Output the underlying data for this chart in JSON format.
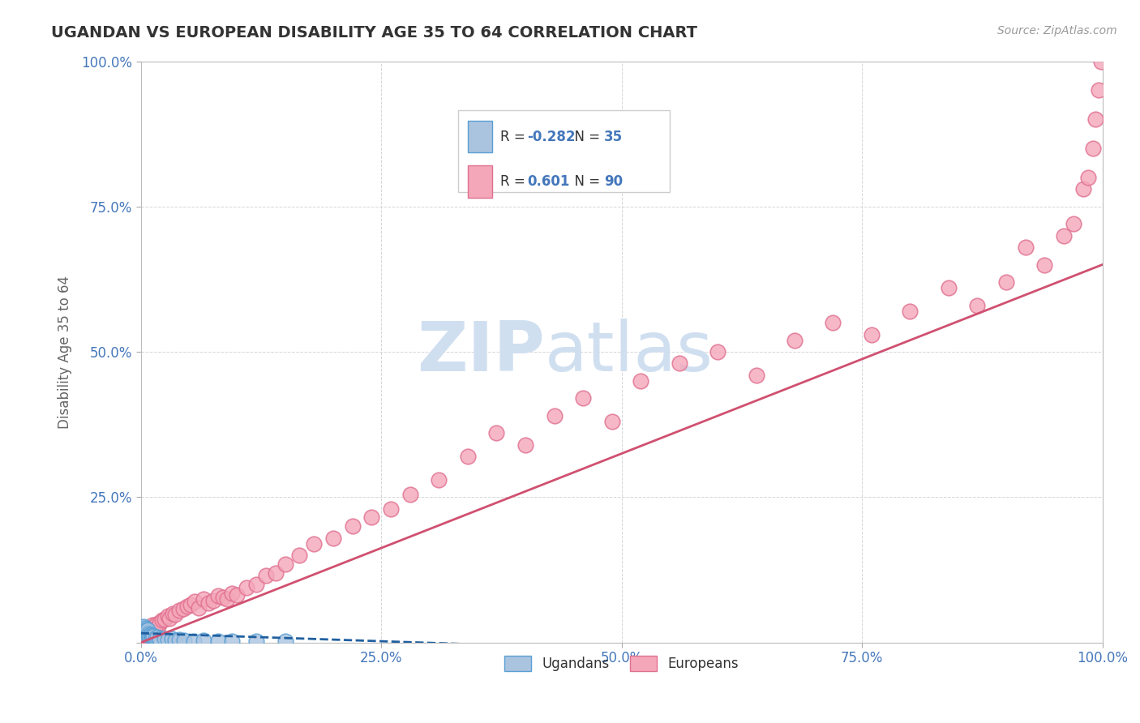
{
  "title": "UGANDAN VS EUROPEAN DISABILITY AGE 35 TO 64 CORRELATION CHART",
  "source": "Source: ZipAtlas.com",
  "ylabel": "Disability Age 35 to 64",
  "xlim": [
    0,
    1.0
  ],
  "ylim": [
    0,
    1.0
  ],
  "xticks": [
    0.0,
    0.25,
    0.5,
    0.75,
    1.0
  ],
  "xticklabels": [
    "0.0%",
    "25.0%",
    "50.0%",
    "75.0%",
    "100.0%"
  ],
  "yticks": [
    0.0,
    0.25,
    0.5,
    0.75,
    1.0
  ],
  "yticklabels": [
    "",
    "25.0%",
    "50.0%",
    "75.0%",
    "100.0%"
  ],
  "ugandan_color": "#aac4e0",
  "european_color": "#f4a7b9",
  "ugandan_edge": "#5a9fd4",
  "european_edge": "#e07090",
  "trend_ugandan_color": "#2060a0",
  "trend_european_color": "#d05070",
  "R_ugandan": -0.282,
  "N_ugandan": 35,
  "R_european": 0.601,
  "N_european": 90,
  "background_color": "#ffffff",
  "grid_color": "#cccccc",
  "title_color": "#333333",
  "axis_label_color": "#666666",
  "tick_color": "#4477bb",
  "watermark_color": "#d0dff0",
  "ugandan_points_x": [
    0.001,
    0.002,
    0.002,
    0.003,
    0.003,
    0.003,
    0.004,
    0.004,
    0.005,
    0.005,
    0.006,
    0.006,
    0.007,
    0.007,
    0.008,
    0.009,
    0.01,
    0.011,
    0.012,
    0.013,
    0.015,
    0.017,
    0.02,
    0.025,
    0.028,
    0.032,
    0.036,
    0.04,
    0.045,
    0.055,
    0.065,
    0.08,
    0.095,
    0.12,
    0.15
  ],
  "ugandan_points_y": [
    0.02,
    0.018,
    0.025,
    0.022,
    0.015,
    0.028,
    0.02,
    0.024,
    0.018,
    0.022,
    0.016,
    0.02,
    0.018,
    0.022,
    0.015,
    0.012,
    0.014,
    0.01,
    0.012,
    0.01,
    0.008,
    0.009,
    0.006,
    0.007,
    0.005,
    0.006,
    0.004,
    0.005,
    0.004,
    0.003,
    0.004,
    0.003,
    0.002,
    0.002,
    0.002
  ],
  "european_points_x": [
    0.001,
    0.002,
    0.002,
    0.003,
    0.003,
    0.004,
    0.004,
    0.004,
    0.005,
    0.005,
    0.005,
    0.006,
    0.006,
    0.007,
    0.007,
    0.008,
    0.008,
    0.009,
    0.009,
    0.01,
    0.01,
    0.011,
    0.012,
    0.012,
    0.013,
    0.014,
    0.015,
    0.016,
    0.018,
    0.02,
    0.022,
    0.025,
    0.028,
    0.03,
    0.033,
    0.036,
    0.04,
    0.044,
    0.048,
    0.052,
    0.056,
    0.06,
    0.065,
    0.07,
    0.075,
    0.08,
    0.085,
    0.09,
    0.095,
    0.1,
    0.11,
    0.12,
    0.13,
    0.14,
    0.15,
    0.165,
    0.18,
    0.2,
    0.22,
    0.24,
    0.26,
    0.28,
    0.31,
    0.34,
    0.37,
    0.4,
    0.43,
    0.46,
    0.49,
    0.52,
    0.56,
    0.6,
    0.64,
    0.68,
    0.72,
    0.76,
    0.8,
    0.84,
    0.87,
    0.9,
    0.92,
    0.94,
    0.96,
    0.97,
    0.98,
    0.985,
    0.99,
    0.993,
    0.996,
    0.999
  ],
  "european_points_y": [
    0.008,
    0.01,
    0.015,
    0.012,
    0.018,
    0.01,
    0.015,
    0.02,
    0.008,
    0.014,
    0.022,
    0.01,
    0.018,
    0.012,
    0.022,
    0.01,
    0.02,
    0.012,
    0.025,
    0.01,
    0.025,
    0.018,
    0.02,
    0.03,
    0.022,
    0.028,
    0.025,
    0.032,
    0.028,
    0.035,
    0.038,
    0.04,
    0.045,
    0.042,
    0.05,
    0.048,
    0.055,
    0.058,
    0.062,
    0.065,
    0.07,
    0.06,
    0.075,
    0.068,
    0.072,
    0.08,
    0.078,
    0.075,
    0.085,
    0.082,
    0.095,
    0.1,
    0.115,
    0.12,
    0.135,
    0.15,
    0.17,
    0.18,
    0.2,
    0.215,
    0.23,
    0.255,
    0.28,
    0.32,
    0.36,
    0.34,
    0.39,
    0.42,
    0.38,
    0.45,
    0.48,
    0.5,
    0.46,
    0.52,
    0.55,
    0.53,
    0.57,
    0.61,
    0.58,
    0.62,
    0.68,
    0.65,
    0.7,
    0.72,
    0.78,
    0.8,
    0.85,
    0.9,
    0.95,
    1.0
  ],
  "eu_trend_x0": 0.0,
  "eu_trend_y0": 0.0,
  "eu_trend_x1": 1.0,
  "eu_trend_y1": 0.65,
  "ug_trend_x0": 0.0,
  "ug_trend_y0": 0.016,
  "ug_trend_x1": 0.38,
  "ug_trend_y1": -0.005
}
